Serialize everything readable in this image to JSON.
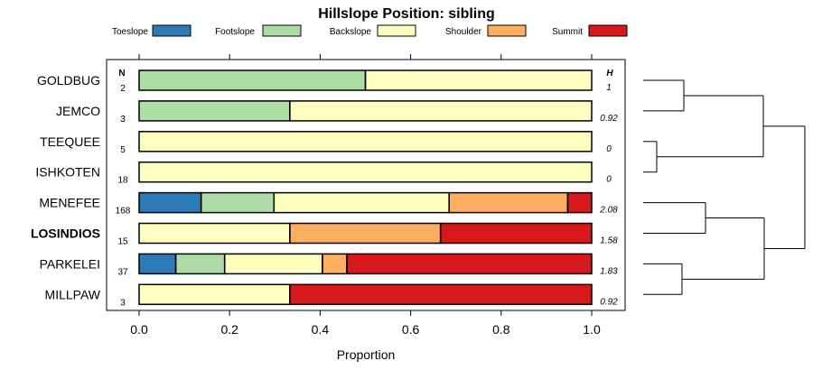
{
  "chart_data": {
    "type": "bar",
    "orientation": "horizontal",
    "stacked": true,
    "title": "Hillslope Position: sibling",
    "xlabel": "Proportion",
    "xlim": [
      0,
      1
    ],
    "xticks": [
      "0.0",
      "0.2",
      "0.4",
      "0.6",
      "0.8",
      "1.0"
    ],
    "xtick_values": [
      0,
      0.2,
      0.4,
      0.6,
      0.8,
      1.0
    ],
    "n_header": "N",
    "h_header": "H",
    "legend_position": "top",
    "series": [
      {
        "name": "Toeslope",
        "color": "#2c7bb6"
      },
      {
        "name": "Footslope",
        "color": "#abdda4"
      },
      {
        "name": "Backslope",
        "color": "#ffffbf"
      },
      {
        "name": "Shoulder",
        "color": "#fdae61"
      },
      {
        "name": "Summit",
        "color": "#d7191c"
      }
    ],
    "categories": [
      {
        "name": "GOLDBUG",
        "n": "2",
        "h": "1",
        "bold": false,
        "values": [
          0,
          0.5,
          0.5,
          0,
          0
        ]
      },
      {
        "name": "JEMCO",
        "n": "3",
        "h": "0.92",
        "bold": false,
        "values": [
          0,
          0.333,
          0.667,
          0,
          0
        ]
      },
      {
        "name": "TEEQUEE",
        "n": "5",
        "h": "0",
        "bold": false,
        "values": [
          0,
          0,
          1.0,
          0,
          0
        ]
      },
      {
        "name": "ISHKOTEN",
        "n": "18",
        "h": "0",
        "bold": false,
        "values": [
          0,
          0,
          1.0,
          0,
          0
        ]
      },
      {
        "name": "MENEFEE",
        "n": "168",
        "h": "2.08",
        "bold": false,
        "values": [
          0.137,
          0.161,
          0.387,
          0.262,
          0.053
        ]
      },
      {
        "name": "LOSINDIOS",
        "n": "15",
        "h": "1.58",
        "bold": true,
        "values": [
          0,
          0,
          0.333,
          0.333,
          0.334
        ]
      },
      {
        "name": "PARKELEI",
        "n": "37",
        "h": "1.83",
        "bold": false,
        "values": [
          0.081,
          0.108,
          0.216,
          0.054,
          0.541
        ]
      },
      {
        "name": "MILLPAW",
        "n": "3",
        "h": "0.92",
        "bold": false,
        "values": [
          0,
          0,
          0.333,
          0,
          0.667
        ]
      }
    ],
    "dendrogram": {
      "description": "hierarchical clustering of rows",
      "merges": [
        [
          "GOLDBUG",
          "JEMCO"
        ],
        [
          "TEEQUEE",
          "ISHKOTEN"
        ],
        [
          "MENEFEE",
          "LOSINDIOS"
        ],
        [
          "PARKELEI",
          "MILLPAW"
        ],
        [
          "G1",
          "G2"
        ],
        [
          "G3",
          "G4"
        ],
        [
          "G5",
          "G6"
        ]
      ]
    }
  }
}
